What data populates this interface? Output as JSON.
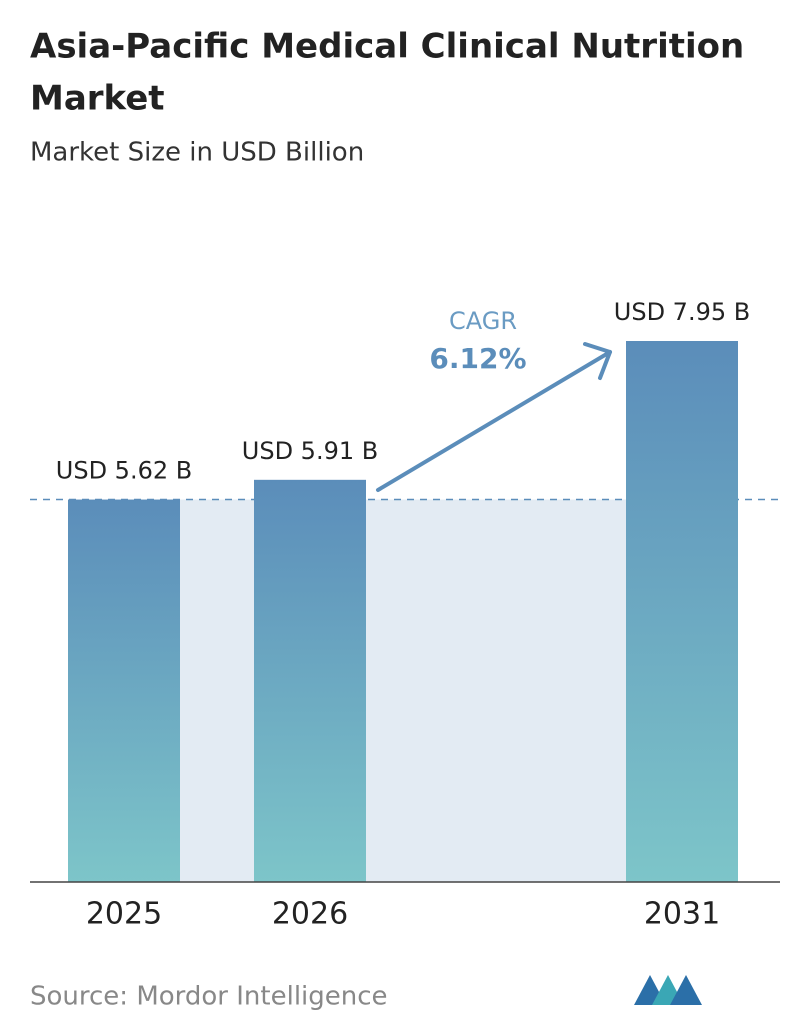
{
  "chart_data": {
    "type": "bar",
    "title": [
      "Asia-Pacific Medical Clinical Nutrition",
      "Market"
    ],
    "subtitle": "Market Size in USD Billion",
    "categories": [
      "2025",
      "2026",
      "2031"
    ],
    "values": [
      5.62,
      5.91,
      7.95
    ],
    "value_labels": [
      "USD 5.62 B",
      "USD 5.91 B",
      "USD 7.95 B"
    ],
    "annotation": {
      "label": "CAGR",
      "value": "6.12%"
    },
    "source": "Source:  Mordor Intelligence",
    "color": [
      "#5b8dba",
      "#7dc5c9"
    ]
  }
}
